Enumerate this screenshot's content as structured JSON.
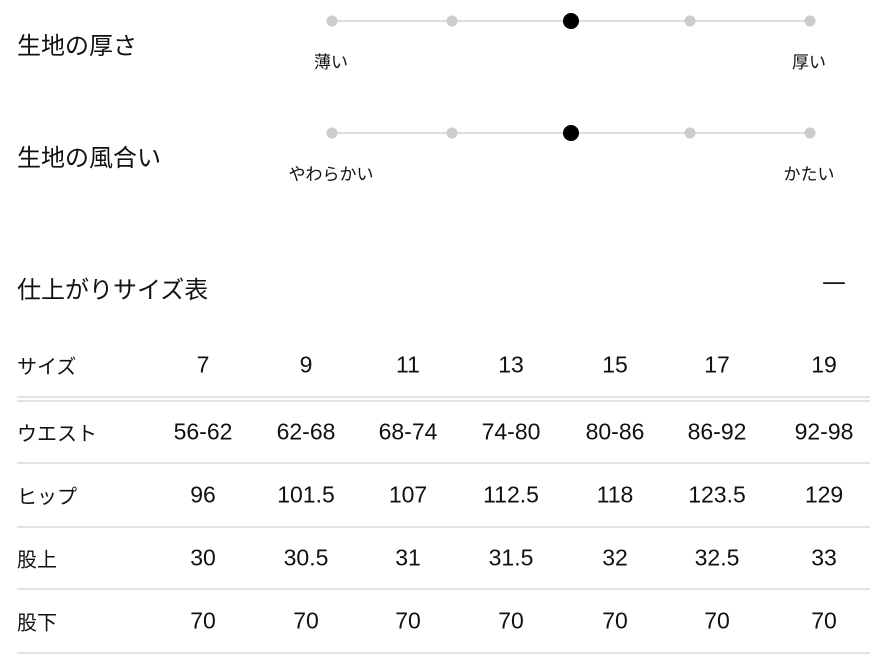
{
  "sliders": [
    {
      "title": "生地の厚さ",
      "min_label": "薄い",
      "max_label": "厚い",
      "steps": 5,
      "selected": 3
    },
    {
      "title": "生地の風合い",
      "min_label": "やわらかい",
      "max_label": "かたい",
      "steps": 5,
      "selected": 3
    }
  ],
  "size_table": {
    "title": "仕上がりサイズ表",
    "collapse_icon": "minus-icon",
    "collapse_symbol": "—",
    "header": {
      "label": "サイズ",
      "values": [
        "7",
        "9",
        "11",
        "13",
        "15",
        "17",
        "19"
      ]
    },
    "rows": [
      {
        "label": "ウエスト",
        "values": [
          "56-62",
          "62-68",
          "68-74",
          "74-80",
          "80-86",
          "86-92",
          "92-98"
        ]
      },
      {
        "label": "ヒップ",
        "values": [
          "96",
          "101.5",
          "107",
          "112.5",
          "118",
          "123.5",
          "129"
        ]
      },
      {
        "label": "股上",
        "values": [
          "30",
          "30.5",
          "31",
          "31.5",
          "32",
          "32.5",
          "33"
        ]
      },
      {
        "label": "股下",
        "values": [
          "70",
          "70",
          "70",
          "70",
          "70",
          "70",
          "70"
        ]
      }
    ]
  }
}
